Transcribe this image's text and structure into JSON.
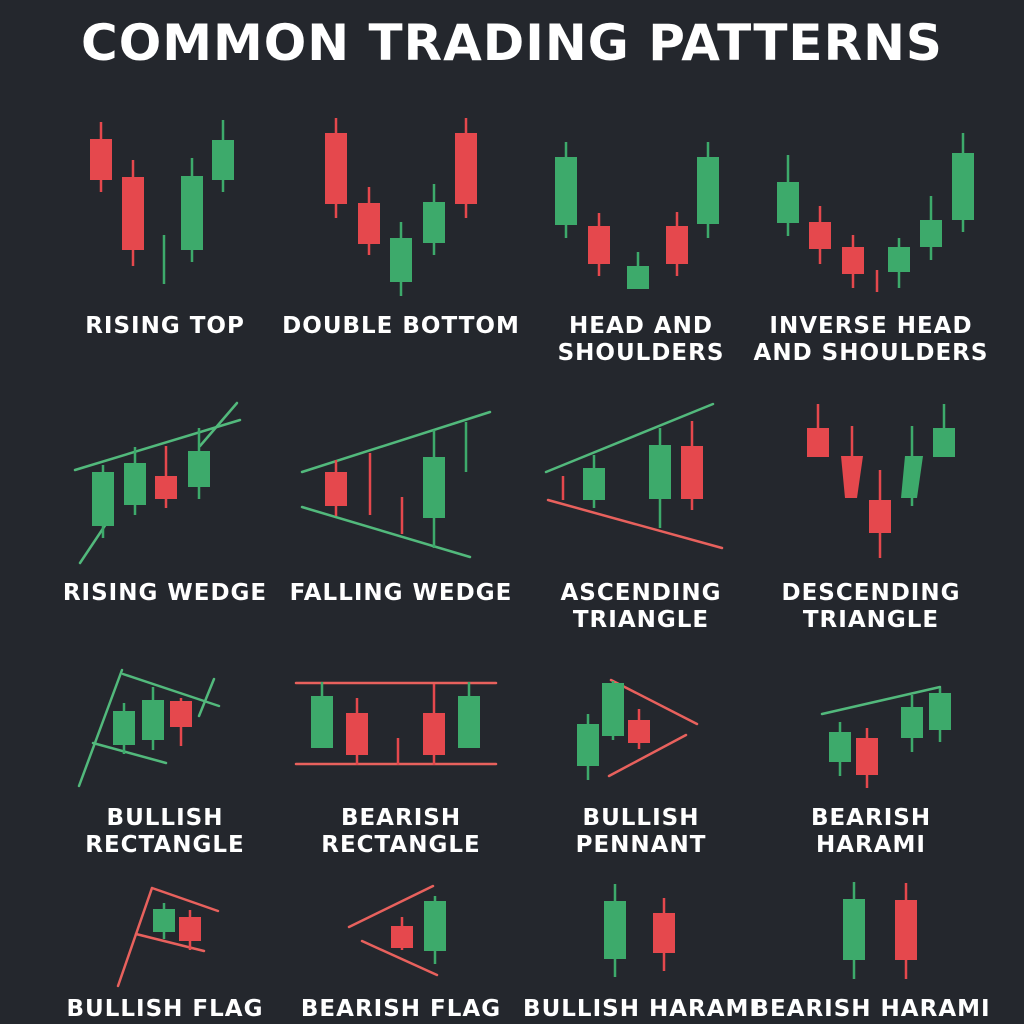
{
  "title": "COMMON TRADING PATTERNS",
  "colors": {
    "background": "#24272d",
    "bull": "#3daa6b",
    "bear": "#e5484d",
    "bull_line": "#52b97c",
    "bear_line": "#e8615d",
    "text": "#ffffff"
  },
  "patterns": [
    {
      "name": "RISING TOP"
    },
    {
      "name": "DOUBLE BOTTOM"
    },
    {
      "name": "HEAD AND\nSHOULDERS"
    },
    {
      "name": "INVERSE HEAD\nAND SHOULDERS"
    },
    {
      "name": "RISING WEDGE"
    },
    {
      "name": "FALLING WEDGE"
    },
    {
      "name": "ASCENDING\nTRIANGLE"
    },
    {
      "name": "DESCENDING\nTRIANGLE"
    },
    {
      "name": "BULLISH\nRECTANGLE"
    },
    {
      "name": "BEARISH\nRECTANGLE"
    },
    {
      "name": "BULLISH\nPENNANT"
    },
    {
      "name": "BEARISH\nHARAMI"
    },
    {
      "name": "BULLISH FLAG"
    },
    {
      "name": "BEARISH FLAG"
    },
    {
      "name": "BULLISH HARAMI"
    },
    {
      "name": "BEARISH HARAMI"
    }
  ]
}
